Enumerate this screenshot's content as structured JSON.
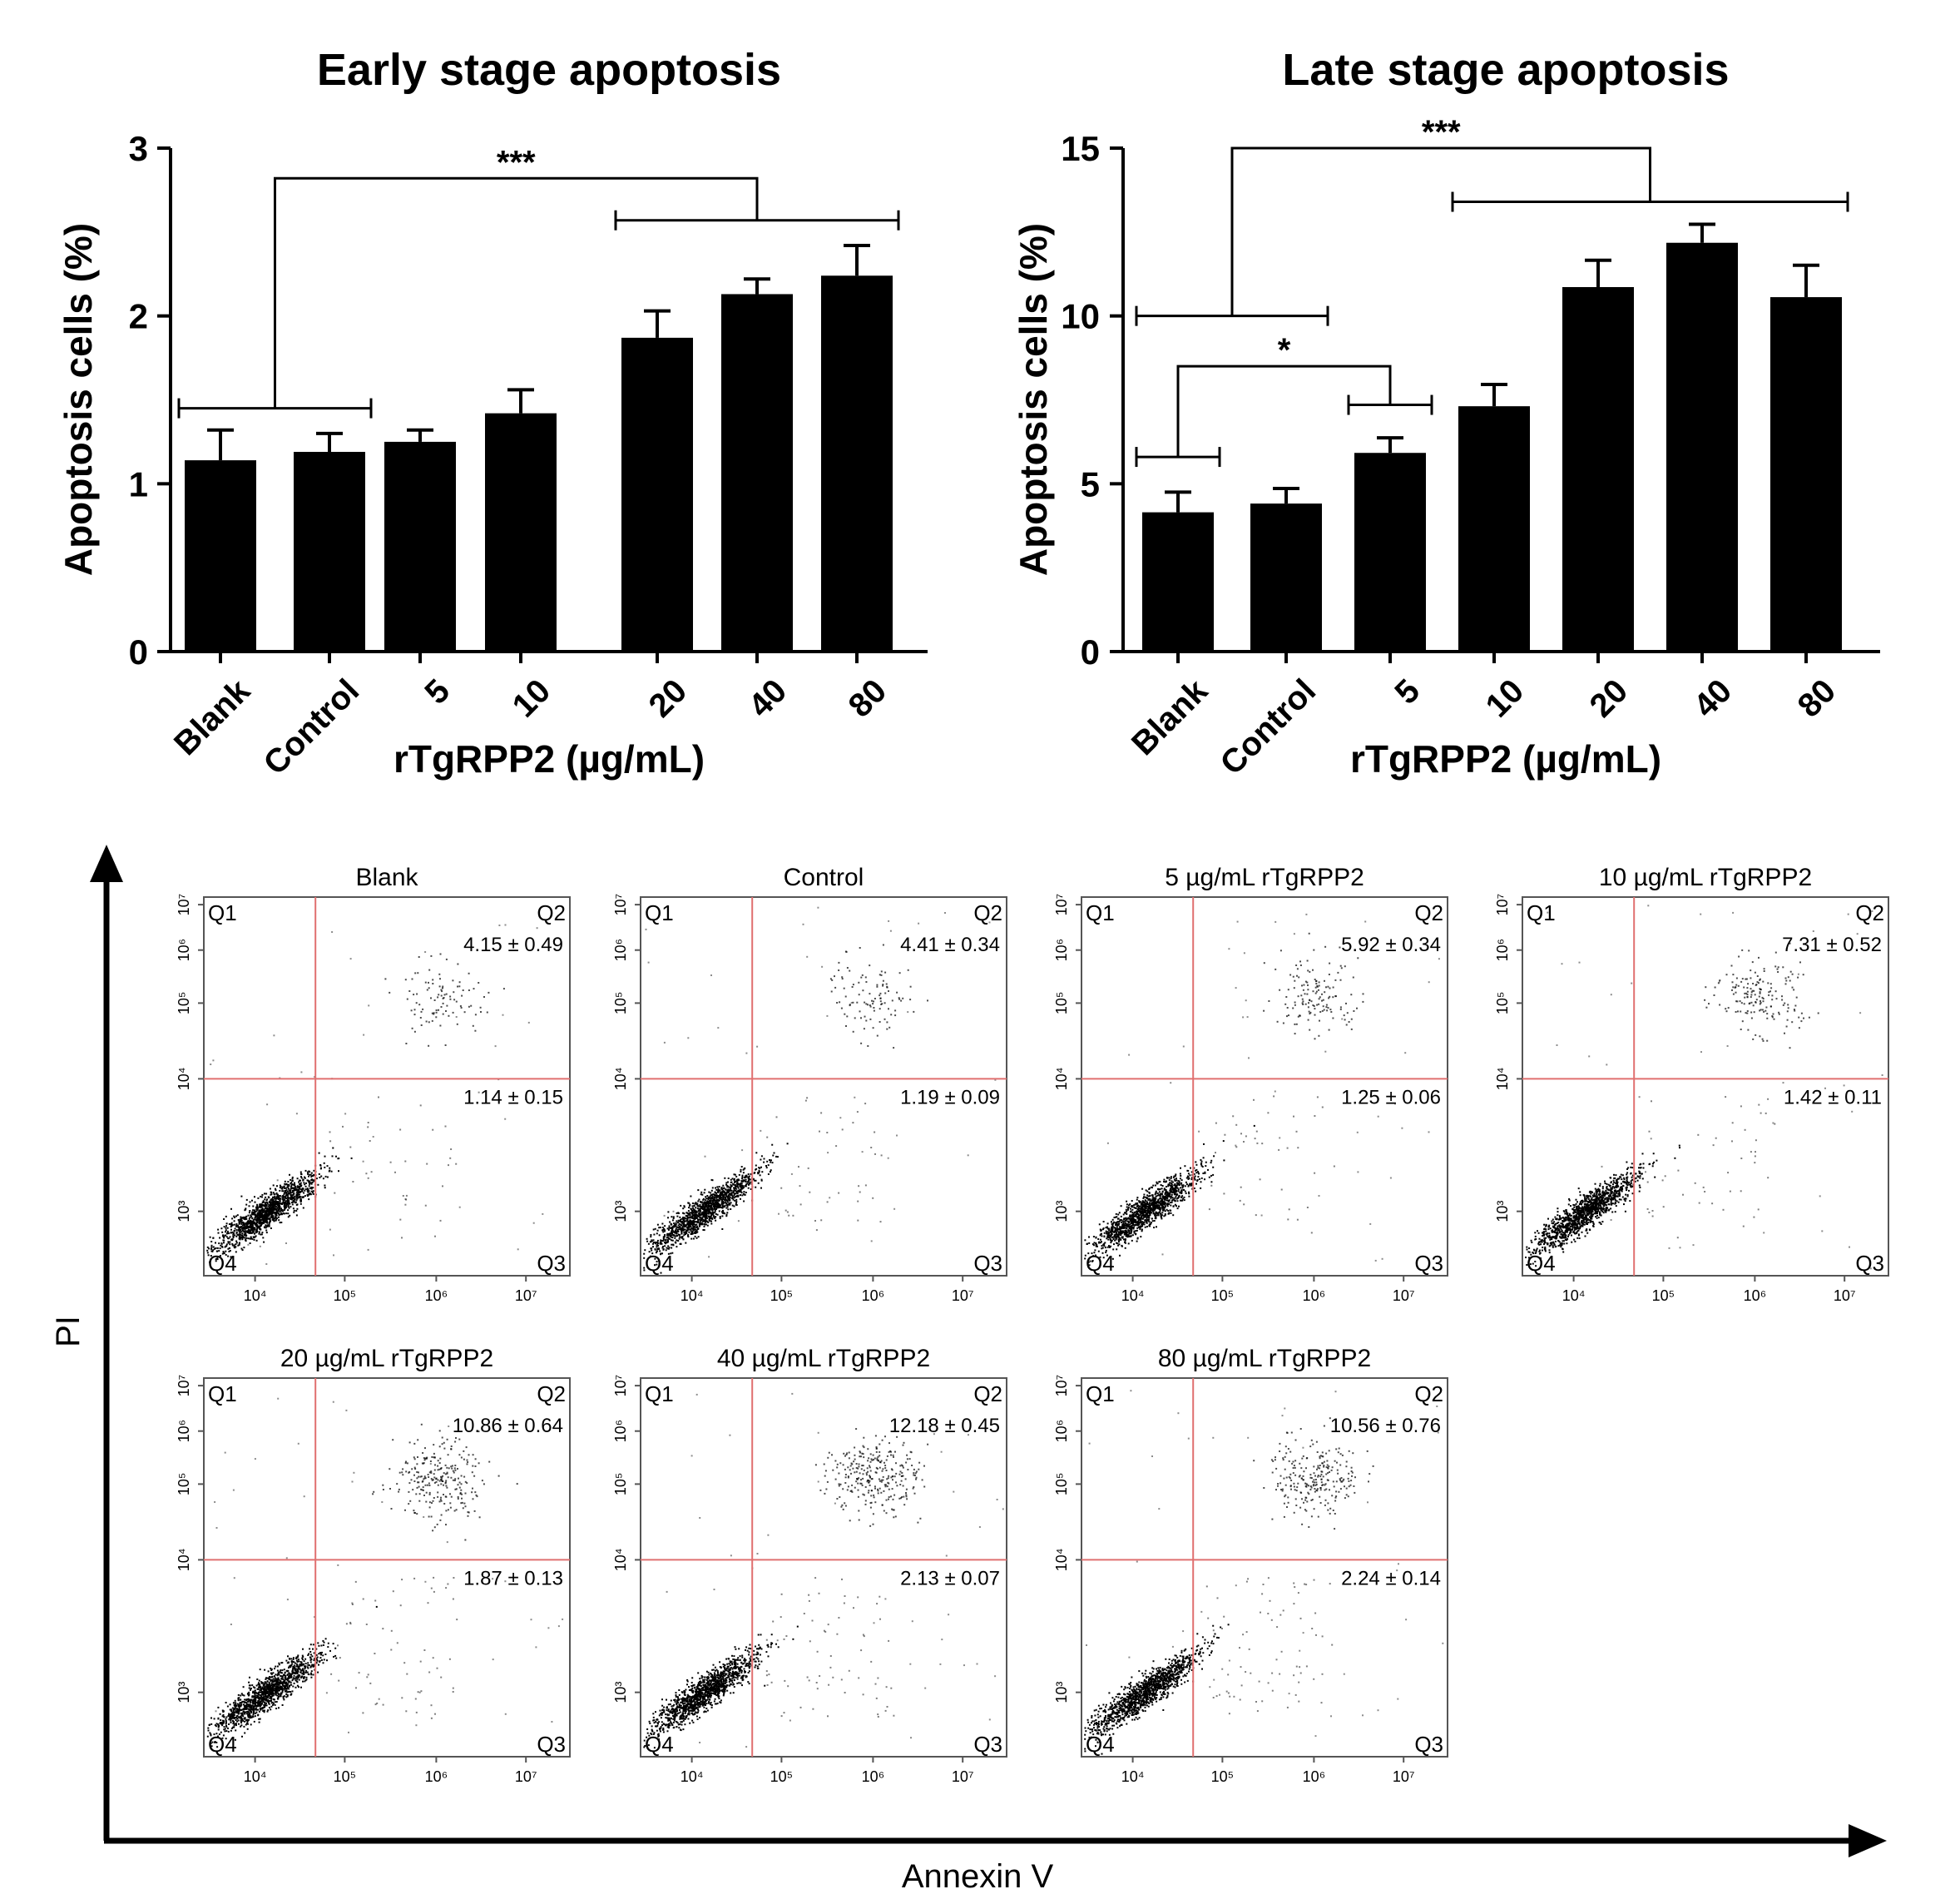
{
  "chart_data": [
    {
      "type": "bar",
      "title": "Early stage apoptosis",
      "xlabel": "rTgRPP2 (µg/mL)",
      "ylabel": "Apoptosis cells (%)",
      "categories": [
        "Blank",
        "Control",
        "5",
        "10",
        "20",
        "40",
        "80"
      ],
      "values": [
        1.14,
        1.19,
        1.25,
        1.42,
        1.87,
        2.13,
        2.24
      ],
      "errors": [
        0.18,
        0.11,
        0.07,
        0.14,
        0.16,
        0.09,
        0.18
      ],
      "ylim": [
        0,
        3
      ],
      "yticks": [
        "0",
        "1",
        "2",
        "3"
      ],
      "significance": [
        {
          "label": "***",
          "group1": [
            0,
            1
          ],
          "group2": [
            4,
            6
          ],
          "level1": 1.45,
          "level2": 2.57,
          "top": 2.82
        }
      ]
    },
    {
      "type": "bar",
      "title": "Late stage apoptosis",
      "xlabel": "rTgRPP2 (µg/mL)",
      "ylabel": "Apoptosis cells (%)",
      "categories": [
        "Blank",
        "Control",
        "5",
        "10",
        "20",
        "40",
        "80"
      ],
      "values": [
        4.15,
        4.41,
        5.92,
        7.31,
        10.86,
        12.18,
        10.56
      ],
      "errors": [
        0.6,
        0.45,
        0.45,
        0.65,
        0.8,
        0.55,
        0.95
      ],
      "ylim": [
        0,
        15
      ],
      "yticks": [
        "0",
        "5",
        "10",
        "15"
      ],
      "significance": [
        {
          "label": "***",
          "group1": [
            0,
            1
          ],
          "group2": [
            3,
            6
          ],
          "level1": 10.0,
          "level2": 13.4,
          "top": 15.0
        },
        {
          "label": "*",
          "group1": [
            0,
            0
          ],
          "group2": [
            2,
            2
          ],
          "level1": 5.8,
          "level2": 7.35,
          "top": 8.5
        }
      ]
    },
    {
      "type": "scatter",
      "subtype": "flow-cytometry-dot-plot",
      "xlabel": "Annexin V",
      "ylabel": "PI",
      "axis_ticks": [
        "10⁴",
        "10⁵",
        "10⁶",
        "10⁷"
      ],
      "y_axis_ticks": [
        "10³",
        "10⁴",
        "10⁵",
        "10⁶",
        "10⁷"
      ],
      "quadrant_labels": [
        "Q1",
        "Q2",
        "Q3",
        "Q4"
      ],
      "panels": [
        {
          "title": "Blank",
          "q2": "4.15 ± 0.49",
          "q3": "1.14 ± 0.15"
        },
        {
          "title": "Control",
          "q2": "4.41 ± 0.34",
          "q3": "1.19 ± 0.09"
        },
        {
          "title": "5 µg/mL rTgRPP2",
          "q2": "5.92 ± 0.34",
          "q3": "1.25 ± 0.06"
        },
        {
          "title": "10 µg/mL rTgRPP2",
          "q2": "7.31 ± 0.52",
          "q3": "1.42 ± 0.11"
        },
        {
          "title": "20 µg/mL rTgRPP2",
          "q2": "10.86 ± 0.64",
          "q3": "1.87 ± 0.13"
        },
        {
          "title": "40 µg/mL rTgRPP2",
          "q2": "12.18 ± 0.45",
          "q3": "2.13 ± 0.07"
        },
        {
          "title": "80 µg/mL rTgRPP2",
          "q2": "10.56 ± 0.76",
          "q3": "2.24 ± 0.14"
        }
      ]
    }
  ],
  "colors": {
    "bar": "#000000",
    "gate": "#e07070",
    "dot": "#000000",
    "panel_border": "#555555"
  }
}
